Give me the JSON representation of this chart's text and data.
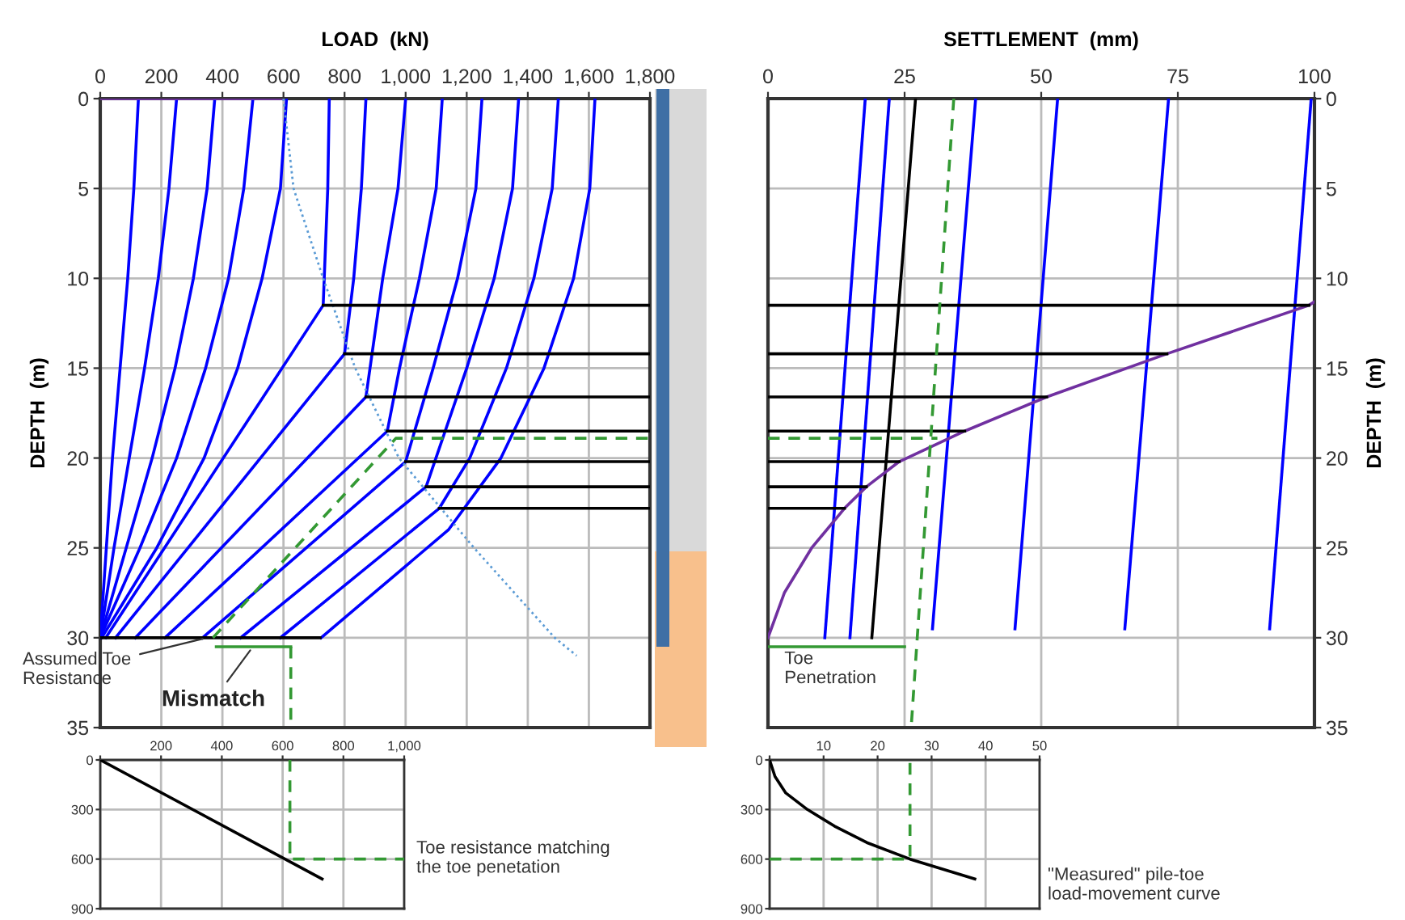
{
  "chart_data": [
    {
      "type": "line",
      "xlabel": "LOAD  (kN)",
      "ylabel": "DEPTH  (m)",
      "xlim": [
        0,
        1800
      ],
      "xticks": [
        0,
        200,
        400,
        600,
        800,
        {
          "value": 1000,
          "label": "1,000"
        },
        {
          "value": 1200,
          "label": "1,200"
        },
        {
          "value": 1400,
          "label": "1,400"
        },
        {
          "value": 1600,
          "label": "1,600"
        },
        {
          "value": 1800,
          "label": "1,800"
        }
      ],
      "ylim": [
        35,
        0
      ],
      "yticks": [
        0,
        5,
        10,
        15,
        20,
        25,
        30,
        35
      ],
      "grid": true,
      "legend": false,
      "annotations": [
        {
          "text": "Assumed Toe\nResistance",
          "x": 350,
          "y": 30
        },
        {
          "text": "Mismatch",
          "x": 500,
          "y": 30.5
        }
      ],
      "series": [
        {
          "color": "#0000ff",
          "x": [
            125,
            110,
            90,
            65,
            40,
            20,
            0
          ],
          "values": [
            0,
            5,
            10,
            15,
            20,
            25,
            30
          ]
        },
        {
          "color": "#0000ff",
          "x": [
            250,
            225,
            190,
            145,
            95,
            45,
            0
          ],
          "values": [
            0,
            5,
            10,
            15,
            20,
            25,
            30
          ]
        },
        {
          "color": "#0000ff",
          "x": [
            375,
            350,
            305,
            245,
            170,
            85,
            0
          ],
          "values": [
            0,
            5,
            10,
            15,
            20,
            25,
            30
          ]
        },
        {
          "color": "#0000ff",
          "x": [
            500,
            470,
            420,
            345,
            250,
            130,
            0
          ],
          "values": [
            0,
            5,
            10,
            15,
            20,
            25,
            30
          ]
        },
        {
          "color": "#0000ff",
          "x": [
            610,
            590,
            530,
            450,
            340,
            185,
            5
          ],
          "values": [
            0,
            5,
            10,
            15,
            20,
            25,
            30
          ]
        },
        {
          "color": "#0000ff",
          "x": [
            750,
            745,
            730,
            18
          ],
          "values": [
            0,
            5,
            11.5,
            30
          ]
        },
        {
          "color": "#0000ff",
          "x": [
            870,
            855,
            830,
            800,
            50
          ],
          "values": [
            0,
            5,
            10,
            14.2,
            30
          ]
        },
        {
          "color": "#0000ff",
          "x": [
            1000,
            975,
            925,
            870,
            115
          ],
          "values": [
            0,
            5,
            10,
            16.6,
            30
          ]
        },
        {
          "color": "#0000ff",
          "x": [
            1120,
            1100,
            1045,
            980,
            940,
            212
          ],
          "values": [
            0,
            5,
            10,
            15,
            18.5,
            30
          ]
        },
        {
          "color": "#0000ff",
          "x": [
            1250,
            1230,
            1170,
            1090,
            1000,
            335
          ],
          "values": [
            0,
            5,
            10,
            15,
            20.2,
            30
          ]
        },
        {
          "color": "#0000ff",
          "x": [
            1370,
            1350,
            1290,
            1200,
            1067,
            460
          ],
          "values": [
            0,
            5,
            10,
            15,
            21.6,
            30
          ]
        },
        {
          "color": "#0000ff",
          "x": [
            1500,
            1480,
            1420,
            1330,
            1210,
            1110,
            590
          ],
          "values": [
            0,
            5,
            10,
            15,
            20,
            22.8,
            30
          ]
        },
        {
          "color": "#0000ff",
          "x": [
            1620,
            1603,
            1550,
            1453,
            1312,
            1140,
            723
          ],
          "values": [
            0,
            5,
            10,
            15,
            20,
            24,
            30
          ]
        },
        {
          "color": "#7030a0",
          "x": [
            0,
            600
          ],
          "values": [
            0,
            0
          ]
        },
        {
          "color": "#000000",
          "x": [
            0,
            720
          ],
          "values": [
            30,
            30
          ]
        },
        {
          "color": "#5b9bd5",
          "line_style": "dotted",
          "x": [
            600,
            633,
            730,
            835,
            978,
            1224,
            1488,
            1560
          ],
          "values": [
            0,
            5,
            10,
            15,
            20,
            25,
            30,
            31
          ]
        },
        {
          "color": "#000000",
          "x": [
            730,
            1800
          ],
          "values": [
            11.5,
            11.5
          ]
        },
        {
          "color": "#000000",
          "x": [
            800,
            1800
          ],
          "values": [
            14.2,
            14.2
          ]
        },
        {
          "color": "#000000",
          "x": [
            870,
            1800
          ],
          "values": [
            16.6,
            16.6
          ]
        },
        {
          "color": "#000000",
          "x": [
            940,
            1800
          ],
          "values": [
            18.5,
            18.5
          ]
        },
        {
          "color": "#000000",
          "x": [
            1000,
            1800
          ],
          "values": [
            20.2,
            20.2
          ]
        },
        {
          "color": "#000000",
          "x": [
            1067,
            1800
          ],
          "values": [
            21.6,
            21.6
          ]
        },
        {
          "color": "#000000",
          "x": [
            1110,
            1800
          ],
          "values": [
            22.8,
            22.8
          ]
        },
        {
          "color": "#339933",
          "line_style": "dashed",
          "x": [
            369,
            968,
            1800
          ],
          "values": [
            30,
            18.9,
            18.9
          ]
        },
        {
          "color": "#339933",
          "x": [
            380,
            624
          ],
          "values": [
            30.5,
            30.5
          ]
        },
        {
          "color": "#339933",
          "line_style": "dashed",
          "x": [
            624,
            624
          ],
          "values": [
            30.5,
            35
          ]
        }
      ]
    },
    {
      "type": "line",
      "xlabel": "SETTLEMENT  (mm)",
      "ylabel": "DEPTH  (m)",
      "xlim": [
        0,
        100
      ],
      "xticks": [
        0,
        25,
        50,
        75,
        100
      ],
      "ylim": [
        35,
        0
      ],
      "yticks": [
        0,
        5,
        10,
        15,
        20,
        25,
        30,
        35
      ],
      "grid": true,
      "legend": false,
      "annotations": [
        "Toe\nPenetration"
      ],
      "series": [
        {
          "color": "#0000ff",
          "x": [
            17.8,
            10.4
          ],
          "values": [
            0,
            30
          ]
        },
        {
          "color": "#0000ff",
          "x": [
            22.2,
            15
          ],
          "values": [
            0,
            30
          ]
        },
        {
          "color": "#0000ff",
          "x": [
            38,
            30.1
          ],
          "values": [
            0,
            29.5
          ]
        },
        {
          "color": "#0000ff",
          "x": [
            53,
            45.2
          ],
          "values": [
            0,
            29.5
          ]
        },
        {
          "color": "#0000ff",
          "x": [
            73.3,
            65.3
          ],
          "values": [
            0,
            29.5
          ]
        },
        {
          "color": "#0000ff",
          "x": [
            99.4,
            91.8
          ],
          "values": [
            0,
            29.5
          ]
        },
        {
          "color": "#000000",
          "x": [
            27,
            19
          ],
          "values": [
            0,
            30
          ]
        },
        {
          "color": "#7030a0",
          "x": [
            100,
            99,
            73,
            51,
            36,
            24,
            18,
            14,
            8,
            3,
            0
          ],
          "values": [
            11.3,
            11.5,
            14.2,
            16.6,
            18.5,
            20.2,
            21.6,
            22.8,
            25,
            27.5,
            30
          ]
        },
        {
          "color": "#000000",
          "x": [
            0,
            99
          ],
          "values": [
            11.5,
            11.5
          ]
        },
        {
          "color": "#000000",
          "x": [
            0,
            73
          ],
          "values": [
            14.2,
            14.2
          ]
        },
        {
          "color": "#000000",
          "x": [
            0,
            51
          ],
          "values": [
            16.6,
            16.6
          ]
        },
        {
          "color": "#000000",
          "x": [
            0,
            36
          ],
          "values": [
            18.5,
            18.5
          ]
        },
        {
          "color": "#000000",
          "x": [
            0,
            24
          ],
          "values": [
            20.2,
            20.2
          ]
        },
        {
          "color": "#000000",
          "x": [
            0,
            18
          ],
          "values": [
            21.6,
            21.6
          ]
        },
        {
          "color": "#000000",
          "x": [
            0,
            14
          ],
          "values": [
            22.8,
            22.8
          ]
        },
        {
          "color": "#339933",
          "line_style": "dashed",
          "x": [
            34,
            26.2
          ],
          "values": [
            0,
            35
          ]
        },
        {
          "color": "#339933",
          "line_style": "dashed",
          "x": [
            0,
            31
          ],
          "values": [
            18.9,
            18.9
          ]
        },
        {
          "color": "#339933",
          "x": [
            0,
            25
          ],
          "values": [
            30.5,
            30.5
          ]
        }
      ]
    },
    {
      "type": "line",
      "xlim": [
        0,
        1000
      ],
      "xticks": [
        {
          "value": 0,
          "label": null
        },
        200,
        400,
        600,
        800,
        {
          "value": 1000,
          "label": "1,000"
        }
      ],
      "ylim": [
        900,
        0
      ],
      "yticks": [
        0,
        300,
        600,
        900
      ],
      "grid": true,
      "legend": false,
      "annotations": [
        "Toe resistance matching\nthe toe penetation"
      ],
      "series": [
        {
          "color": "#000000",
          "x": [
            0,
            730
          ],
          "values": [
            0,
            720
          ]
        },
        {
          "color": "#339933",
          "line_style": "dashed",
          "x": [
            624,
            624,
            1000
          ],
          "values": [
            0,
            600,
            600
          ]
        }
      ]
    },
    {
      "type": "line",
      "xlim": [
        0,
        50
      ],
      "xticks": [
        {
          "value": 0,
          "label": null
        },
        10,
        20,
        30,
        40,
        50
      ],
      "ylim": [
        900,
        0
      ],
      "yticks": [
        0,
        300,
        600,
        900
      ],
      "grid": true,
      "legend": false,
      "annotations": [
        "\"Measured\" pile-toe\nload-movement curve"
      ],
      "series": [
        {
          "color": "#000000",
          "x": [
            0,
            1,
            3,
            7,
            12,
            18,
            26,
            38
          ],
          "values": [
            0,
            100,
            200,
            300,
            400,
            500,
            600,
            720
          ]
        },
        {
          "color": "#339933",
          "line_style": "dashed",
          "x": [
            0,
            26,
            26
          ],
          "values": [
            600,
            600,
            0
          ]
        }
      ]
    }
  ]
}
